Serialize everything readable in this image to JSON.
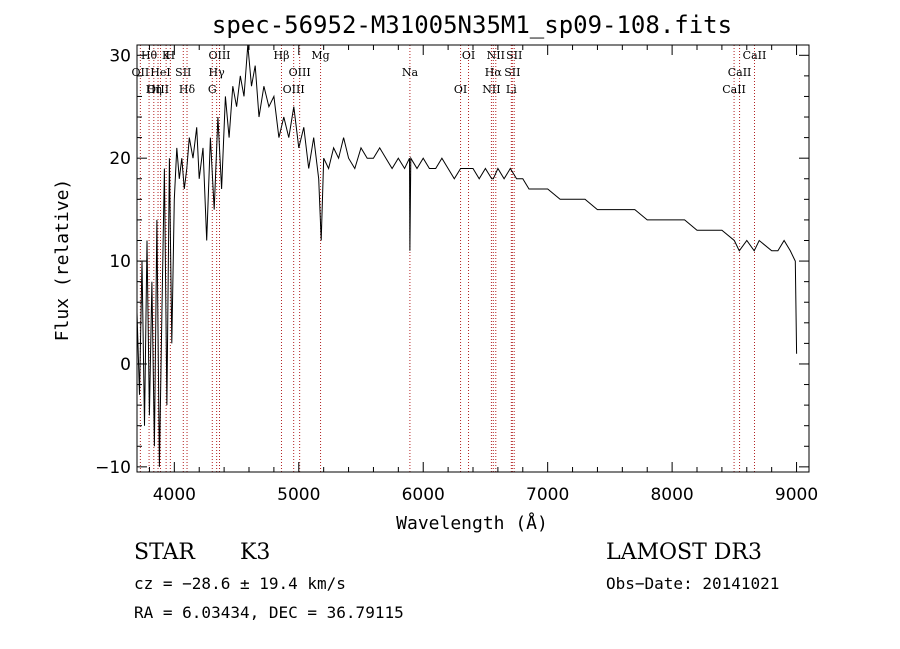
{
  "chart_data": {
    "type": "line",
    "title": "spec-56952-M31005N35M1_sp09-108.fits",
    "xlabel": "Wavelength (Å)",
    "ylabel": "Flux (relative)",
    "xlim": [
      3700,
      9100
    ],
    "ylim": [
      -10.5,
      31
    ],
    "xticks": [
      4000,
      5000,
      6000,
      7000,
      8000,
      9000
    ],
    "yticks": [
      -10,
      0,
      10,
      20,
      30
    ],
    "series": [
      {
        "name": "spectrum",
        "x": [
          3700,
          3720,
          3740,
          3760,
          3780,
          3800,
          3820,
          3840,
          3860,
          3880,
          3900,
          3920,
          3940,
          3960,
          3980,
          4000,
          4020,
          4040,
          4060,
          4080,
          4100,
          4120,
          4150,
          4180,
          4200,
          4230,
          4260,
          4290,
          4320,
          4350,
          4380,
          4410,
          4440,
          4470,
          4500,
          4530,
          4560,
          4590,
          4620,
          4650,
          4680,
          4720,
          4760,
          4800,
          4840,
          4880,
          4920,
          4960,
          5000,
          5040,
          5080,
          5120,
          5160,
          5180,
          5200,
          5240,
          5280,
          5320,
          5360,
          5400,
          5450,
          5500,
          5550,
          5600,
          5650,
          5700,
          5750,
          5800,
          5850,
          5890,
          5893,
          5900,
          5950,
          6000,
          6050,
          6100,
          6150,
          6200,
          6250,
          6300,
          6350,
          6400,
          6450,
          6500,
          6550,
          6563,
          6600,
          6650,
          6700,
          6750,
          6800,
          6850,
          6900,
          6950,
          7000,
          7100,
          7200,
          7300,
          7400,
          7500,
          7600,
          7700,
          7800,
          7900,
          8000,
          8100,
          8200,
          8300,
          8400,
          8500,
          8540,
          8600,
          8660,
          8700,
          8800,
          8850,
          8900,
          8950,
          8990,
          9000
        ],
        "y": [
          5,
          -3,
          10,
          -6,
          12,
          -5,
          8,
          -8,
          14,
          -10,
          5,
          19,
          -4,
          20,
          2,
          16,
          21,
          18,
          20,
          17,
          19,
          22,
          20,
          23,
          18,
          21,
          12,
          22,
          15,
          24,
          17,
          26,
          22,
          27,
          25,
          28,
          26,
          31,
          27,
          29,
          24,
          27,
          25,
          26,
          22,
          24,
          22,
          25,
          21,
          23,
          19,
          22,
          18,
          12,
          20,
          19,
          21,
          20,
          22,
          20,
          19,
          21,
          20,
          20,
          21,
          20,
          19,
          20,
          19,
          20,
          11,
          20,
          19,
          20,
          19,
          19,
          20,
          19,
          18,
          19,
          19,
          19,
          18,
          19,
          18,
          18,
          19,
          18,
          19,
          18,
          18,
          17,
          17,
          17,
          17,
          16,
          16,
          16,
          15,
          15,
          15,
          15,
          14,
          14,
          14,
          14,
          13,
          13,
          13,
          12,
          11,
          12,
          11,
          12,
          11,
          11,
          12,
          11,
          10,
          1
        ]
      }
    ],
    "line_markers": [
      {
        "label": "Hθ",
        "x": 3797
      },
      {
        "label": "OII",
        "x": 3727
      },
      {
        "label": "OIII",
        "x": 3869
      },
      {
        "label": "K",
        "x": 3934
      },
      {
        "label": "HeI",
        "x": 3889
      },
      {
        "label": "Hη",
        "x": 3835
      },
      {
        "label": "H",
        "x": 3968
      },
      {
        "label": "SII",
        "x": 4072
      },
      {
        "label": "Hδ",
        "x": 4102
      },
      {
        "label": "OIII",
        "x": 4363
      },
      {
        "label": "Hγ",
        "x": 4340
      },
      {
        "label": "G",
        "x": 4305
      },
      {
        "label": "Hβ",
        "x": 4861
      },
      {
        "label": "OIII",
        "x": 5007
      },
      {
        "label": "OIII",
        "x": 4959
      },
      {
        "label": "Mg",
        "x": 5175
      },
      {
        "label": "Na",
        "x": 5893
      },
      {
        "label": "OI",
        "x": 6300
      },
      {
        "label": "OI",
        "x": 6364
      },
      {
        "label": "Hα",
        "x": 6563
      },
      {
        "label": "NII",
        "x": 6548
      },
      {
        "label": "NII",
        "x": 6583
      },
      {
        "label": "SII",
        "x": 6716
      },
      {
        "label": "Li",
        "x": 6708
      },
      {
        "label": "SII",
        "x": 6731
      },
      {
        "label": "CaII",
        "x": 8542
      },
      {
        "label": "CaII",
        "x": 8498
      },
      {
        "label": "CaII",
        "x": 8662
      }
    ]
  },
  "info": {
    "object_class": "STAR",
    "subclass": "K3",
    "survey": "LAMOST DR3",
    "redshift": "cz = −28.6 ± 19.4 km/s",
    "obs_date": "Obs−Date: 20141021",
    "coords": "RA =    6.03434, DEC =   36.79115"
  },
  "colors": {
    "axis": "#000000",
    "line_marker": "#b22222",
    "spectrum": "#000000"
  }
}
